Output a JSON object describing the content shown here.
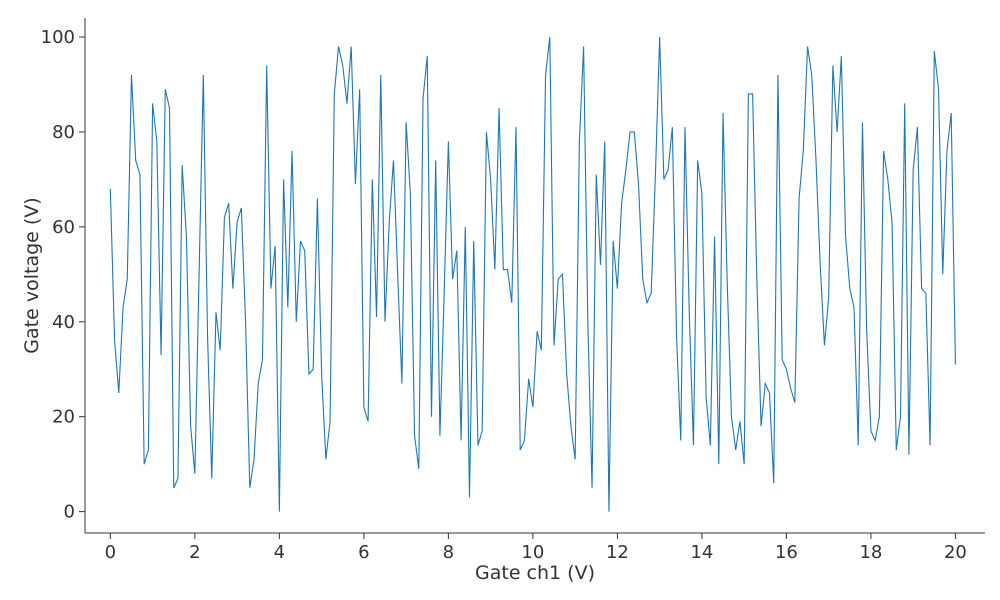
{
  "chart_data": {
    "type": "line",
    "title": "",
    "xlabel": "Gate ch1 (V)",
    "ylabel": "Gate voltage (V)",
    "xlim": [
      -0.6,
      20.7
    ],
    "ylim": [
      -4.5,
      104
    ],
    "xticks": [
      0,
      2,
      4,
      6,
      8,
      10,
      12,
      14,
      16,
      18,
      20
    ],
    "yticks": [
      0,
      20,
      40,
      60,
      80,
      100
    ],
    "grid": false,
    "line_color": "#1f77b4",
    "series": [
      {
        "x": [
          0.0,
          0.1,
          0.2,
          0.3,
          0.4,
          0.5,
          0.6,
          0.7,
          0.8,
          0.9,
          1.0,
          1.1,
          1.2,
          1.3,
          1.4,
          1.5,
          1.6,
          1.7,
          1.8,
          1.9,
          2.0,
          2.1,
          2.2,
          2.3,
          2.4,
          2.5,
          2.6,
          2.7,
          2.8,
          2.9,
          3.0,
          3.1,
          3.2,
          3.3,
          3.4,
          3.5,
          3.6,
          3.7,
          3.8,
          3.9,
          4.0,
          4.1,
          4.2,
          4.3,
          4.4,
          4.5,
          4.6,
          4.7,
          4.8,
          4.9,
          5.0,
          5.1,
          5.2,
          5.3,
          5.4,
          5.5,
          5.6,
          5.7,
          5.8,
          5.9,
          6.0,
          6.1,
          6.2,
          6.3,
          6.4,
          6.5,
          6.6,
          6.7,
          6.8,
          6.9,
          7.0,
          7.1,
          7.2,
          7.3,
          7.4,
          7.5,
          7.6,
          7.7,
          7.8,
          7.9,
          8.0,
          8.1,
          8.2,
          8.3,
          8.4,
          8.5,
          8.6,
          8.7,
          8.8,
          8.9,
          9.0,
          9.1,
          9.2,
          9.3,
          9.4,
          9.5,
          9.6,
          9.7,
          9.8,
          9.9,
          10.0,
          10.1,
          10.2,
          10.3,
          10.4,
          10.5,
          10.6,
          10.7,
          10.8,
          10.9,
          11.0,
          11.1,
          11.2,
          11.3,
          11.4,
          11.5,
          11.6,
          11.7,
          11.8,
          11.9,
          12.0,
          12.1,
          12.2,
          12.3,
          12.4,
          12.5,
          12.6,
          12.7,
          12.8,
          12.9,
          13.0,
          13.1,
          13.2,
          13.3,
          13.4,
          13.5,
          13.6,
          13.7,
          13.8,
          13.9,
          14.0,
          14.1,
          14.2,
          14.3,
          14.4,
          14.5,
          14.6,
          14.7,
          14.8,
          14.9,
          15.0,
          15.1,
          15.2,
          15.3,
          15.4,
          15.5,
          15.6,
          15.7,
          15.8,
          15.9,
          16.0,
          16.1,
          16.2,
          16.3,
          16.4,
          16.5,
          16.6,
          16.7,
          16.8,
          16.9,
          17.0,
          17.1,
          17.2,
          17.3,
          17.4,
          17.5,
          17.6,
          17.7,
          17.8,
          17.9,
          18.0,
          18.1,
          18.2,
          18.3,
          18.4,
          18.5,
          18.6,
          18.7,
          18.8,
          18.9,
          19.0,
          19.1,
          19.2,
          19.3,
          19.4,
          19.5,
          19.6,
          19.7,
          19.8,
          19.9,
          20.0
        ],
        "y": [
          68,
          36,
          25,
          43,
          49,
          92,
          74,
          71,
          10,
          13,
          86,
          78,
          33,
          89,
          85,
          5,
          7,
          73,
          58,
          18,
          8,
          50,
          92,
          37,
          7,
          42,
          34,
          62,
          65,
          47,
          61,
          64,
          40,
          5,
          11,
          27,
          32,
          94,
          47,
          56,
          0,
          70,
          43,
          76,
          40,
          57,
          55,
          29,
          30,
          66,
          29,
          11,
          19,
          88,
          98,
          94,
          86,
          98,
          69,
          89,
          22,
          19,
          70,
          41,
          92,
          40,
          61,
          74,
          50,
          27,
          82,
          67,
          16,
          9,
          87,
          96,
          20,
          74,
          16,
          46,
          78,
          49,
          55,
          15,
          60,
          3,
          57,
          14,
          17,
          80,
          70,
          51,
          85,
          51,
          51,
          44,
          81,
          13,
          15,
          28,
          22,
          38,
          34,
          92,
          100,
          35,
          49,
          50,
          29,
          18,
          11,
          78,
          98,
          40,
          5,
          71,
          52,
          78,
          0,
          57,
          47,
          65,
          72,
          80,
          80,
          69,
          49,
          44,
          46,
          71,
          100,
          70,
          72,
          81,
          37,
          15,
          81,
          42,
          14,
          74,
          67,
          24,
          14,
          58,
          10,
          84,
          48,
          20,
          13,
          19,
          10,
          88,
          88,
          49,
          18,
          27,
          25,
          6,
          92,
          32,
          30,
          26,
          23,
          66,
          76,
          98,
          92,
          74,
          52,
          35,
          45,
          94,
          80,
          96,
          58,
          47,
          43,
          14,
          82,
          38,
          17,
          15,
          20,
          76,
          70,
          61,
          13,
          20,
          86,
          12,
          72,
          81,
          47,
          46,
          14,
          97,
          89,
          50,
          76,
          84,
          31
        ]
      }
    ]
  }
}
